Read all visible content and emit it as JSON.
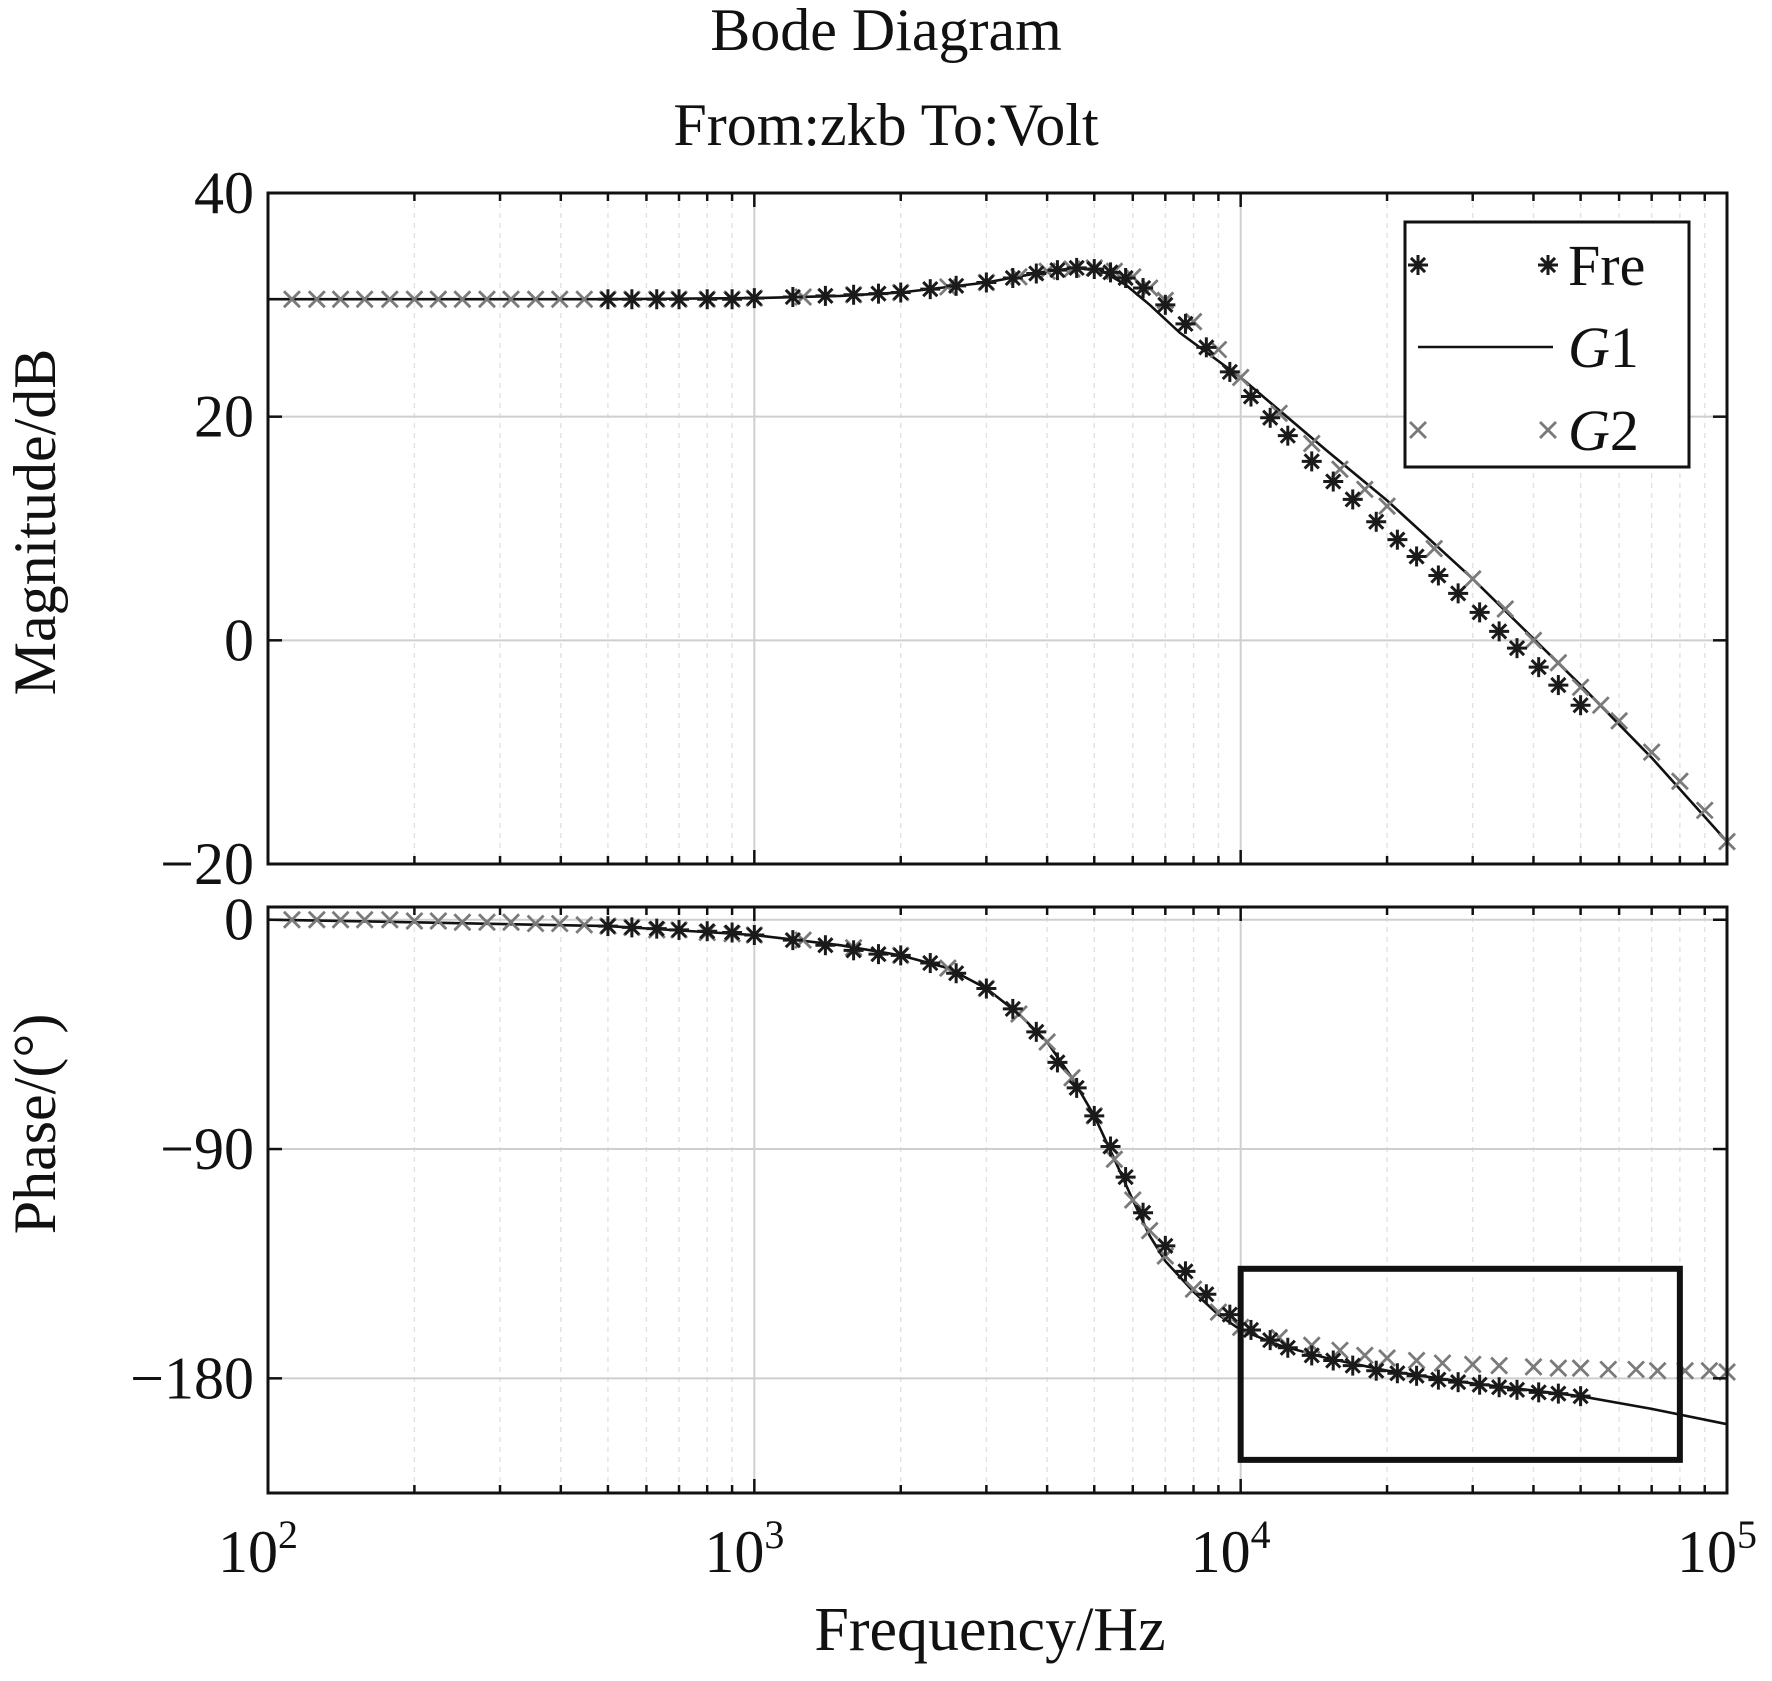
{
  "chart_data": {
    "type": "line",
    "title": "Bode Diagram",
    "subtitle": "From:zkb  To:Volt",
    "xlabel": "Frequency/Hz",
    "xscale": "log",
    "xlim": [
      100,
      100000
    ],
    "x_ticks": [
      100,
      1000,
      10000,
      100000
    ],
    "x_tick_labels": [
      {
        "base": "10",
        "exp": "2"
      },
      {
        "base": "10",
        "exp": "3"
      },
      {
        "base": "10",
        "exp": "4"
      },
      {
        "base": "10",
        "exp": "5"
      }
    ],
    "grid": true,
    "legend": {
      "placement": "top-right",
      "entries": [
        {
          "name": "Fre",
          "marker": "star",
          "italic": false
        },
        {
          "name": "G1",
          "marker": "line",
          "italic": true
        },
        {
          "name": "G2",
          "marker": "x",
          "italic": true
        }
      ]
    },
    "magnitude": {
      "ylabel": "Magnitude/dB",
      "ylim": [
        -20,
        40
      ],
      "y_ticks": [
        -20,
        0,
        20,
        40
      ],
      "y_tick_labels": [
        "−20",
        "0",
        "20",
        "40"
      ],
      "series": [
        {
          "name": "G1",
          "x": [
            100,
            200,
            500,
            1000,
            1500,
            2000,
            3000,
            4000,
            4600,
            5200,
            5800,
            6500,
            7500,
            10000,
            15000,
            20000,
            30000,
            50000,
            70000,
            100000
          ],
          "y": [
            30.5,
            30.5,
            30.5,
            30.6,
            30.8,
            31.1,
            32.0,
            33.0,
            33.3,
            33.0,
            31.8,
            30.0,
            27.5,
            23.5,
            17.0,
            12.5,
            5.5,
            -4.0,
            -10.5,
            -18.0
          ]
        },
        {
          "name": "G2",
          "x": [
            112,
            126,
            141,
            158,
            178,
            200,
            224,
            251,
            282,
            316,
            355,
            398,
            447,
            500,
            560,
            630,
            700,
            800,
            900,
            1000,
            1260,
            1600,
            2000,
            2500,
            3000,
            3500,
            4000,
            4500,
            5000,
            5500,
            6000,
            6500,
            7000,
            8000,
            9000,
            10000,
            12000,
            14000,
            16000,
            18000,
            20000,
            25000,
            30000,
            35000,
            40000,
            45000,
            50000,
            55000,
            60000,
            70000,
            80000,
            90000,
            100000
          ],
          "y": [
            30.5,
            30.5,
            30.5,
            30.5,
            30.5,
            30.5,
            30.5,
            30.5,
            30.5,
            30.5,
            30.5,
            30.5,
            30.5,
            30.5,
            30.5,
            30.5,
            30.5,
            30.5,
            30.5,
            30.6,
            30.7,
            30.9,
            31.1,
            31.6,
            32.0,
            32.5,
            33.0,
            33.2,
            33.3,
            33.0,
            32.5,
            31.5,
            30.4,
            28.5,
            26.0,
            23.5,
            20.3,
            17.6,
            15.3,
            13.5,
            12.0,
            8.2,
            5.5,
            2.8,
            0.0,
            -2.0,
            -4.2,
            -5.8,
            -7.2,
            -10.0,
            -12.6,
            -15.2,
            -18.0
          ]
        },
        {
          "name": "Fre",
          "x": [
            500,
            560,
            630,
            700,
            800,
            900,
            1000,
            1200,
            1400,
            1600,
            1800,
            2000,
            2300,
            2600,
            3000,
            3400,
            3800,
            4200,
            4600,
            5000,
            5400,
            5800,
            6300,
            7000,
            7700,
            8500,
            9500,
            10500,
            11500,
            12500,
            14000,
            15500,
            17000,
            19000,
            21000,
            23000,
            25500,
            28000,
            31000,
            34000,
            37000,
            41000,
            45000,
            50000
          ],
          "y": [
            30.5,
            30.5,
            30.5,
            30.5,
            30.5,
            30.5,
            30.6,
            30.7,
            30.8,
            30.9,
            31.0,
            31.1,
            31.4,
            31.7,
            32.0,
            32.4,
            32.8,
            33.1,
            33.3,
            33.2,
            32.9,
            32.4,
            31.5,
            30.0,
            28.3,
            26.2,
            24.0,
            21.8,
            19.9,
            18.3,
            16.0,
            14.2,
            12.6,
            10.6,
            9.0,
            7.5,
            5.8,
            4.2,
            2.5,
            0.8,
            -0.7,
            -2.4,
            -4.0,
            -5.8
          ]
        }
      ]
    },
    "phase": {
      "ylabel": "Phase/(°)",
      "ylim": [
        -225,
        5
      ],
      "y_ticks": [
        -180,
        -90,
        0
      ],
      "y_tick_labels": [
        "−180",
        "−90",
        "0"
      ],
      "highlight_box": {
        "x": [
          10000,
          80000
        ],
        "y": [
          -212,
          -137
        ]
      },
      "series": [
        {
          "name": "G1",
          "x": [
            100,
            200,
            500,
            1000,
            1500,
            2000,
            2500,
            3000,
            3500,
            4000,
            4500,
            5000,
            5500,
            6000,
            6500,
            7000,
            8000,
            9000,
            10000,
            12000,
            15000,
            20000,
            30000,
            50000,
            70000,
            100000
          ],
          "y": [
            0.0,
            -1.0,
            -2.5,
            -6.0,
            -10.0,
            -14.0,
            -19.0,
            -27.0,
            -37.0,
            -48.0,
            -62.0,
            -77.0,
            -94.0,
            -110.0,
            -124.0,
            -134.0,
            -146.0,
            -155.0,
            -161.0,
            -167.0,
            -172.0,
            -177.0,
            -182.0,
            -187.0,
            -192.0,
            -198.0
          ]
        },
        {
          "name": "G2",
          "x": [
            112,
            126,
            141,
            158,
            178,
            200,
            224,
            251,
            282,
            316,
            355,
            398,
            447,
            500,
            560,
            630,
            700,
            800,
            900,
            1000,
            1260,
            1600,
            2000,
            2500,
            3000,
            3500,
            4000,
            4500,
            5000,
            5500,
            6000,
            6500,
            7000,
            8000,
            9000,
            10000,
            12000,
            14000,
            16000,
            18000,
            20000,
            23000,
            26000,
            30000,
            34000,
            40000,
            45000,
            50000,
            57000,
            65000,
            72000,
            82000,
            92000,
            100000
          ],
          "y": [
            0.0,
            0.0,
            0.0,
            0.0,
            0.0,
            -0.5,
            -0.5,
            -1.0,
            -1.0,
            -1.0,
            -1.5,
            -1.5,
            -2.0,
            -2.5,
            -3.0,
            -4.0,
            -4.0,
            -5.0,
            -5.5,
            -6.0,
            -8.0,
            -11.0,
            -14.0,
            -19.0,
            -27.0,
            -37.0,
            -48.0,
            -62.0,
            -77.0,
            -94.0,
            -110.0,
            -122.0,
            -132.0,
            -145.0,
            -154.0,
            -160.0,
            -164.0,
            -167.0,
            -169.0,
            -171.0,
            -172.0,
            -173.0,
            -174.0,
            -174.5,
            -175.0,
            -175.5,
            -176.0,
            -176.0,
            -176.5,
            -176.5,
            -177.0,
            -177.0,
            -177.0,
            -177.5
          ]
        },
        {
          "name": "Fre",
          "x": [
            500,
            560,
            630,
            700,
            800,
            900,
            1000,
            1200,
            1400,
            1600,
            1800,
            2000,
            2300,
            2600,
            3000,
            3400,
            3800,
            4200,
            4600,
            5000,
            5400,
            5800,
            6300,
            7000,
            7700,
            8500,
            9500,
            10500,
            11500,
            12500,
            14000,
            15500,
            17000,
            19000,
            21000,
            23000,
            25500,
            28000,
            31000,
            34000,
            37000,
            41000,
            45000,
            50000
          ],
          "y": [
            -2.5,
            -3.0,
            -3.5,
            -4.0,
            -4.5,
            -5.0,
            -6.0,
            -8.0,
            -10.0,
            -12.0,
            -13.5,
            -14.0,
            -17.0,
            -21.0,
            -27.0,
            -35.0,
            -44.0,
            -56.0,
            -66.0,
            -77.0,
            -89.0,
            -101.0,
            -115.0,
            -128.0,
            -138.0,
            -147.0,
            -155.0,
            -161.0,
            -165.0,
            -168.0,
            -171.0,
            -173.0,
            -175.0,
            -177.0,
            -178.0,
            -179.0,
            -180.5,
            -181.5,
            -182.5,
            -183.5,
            -184.5,
            -185.5,
            -186.0,
            -187.0
          ]
        }
      ]
    }
  }
}
